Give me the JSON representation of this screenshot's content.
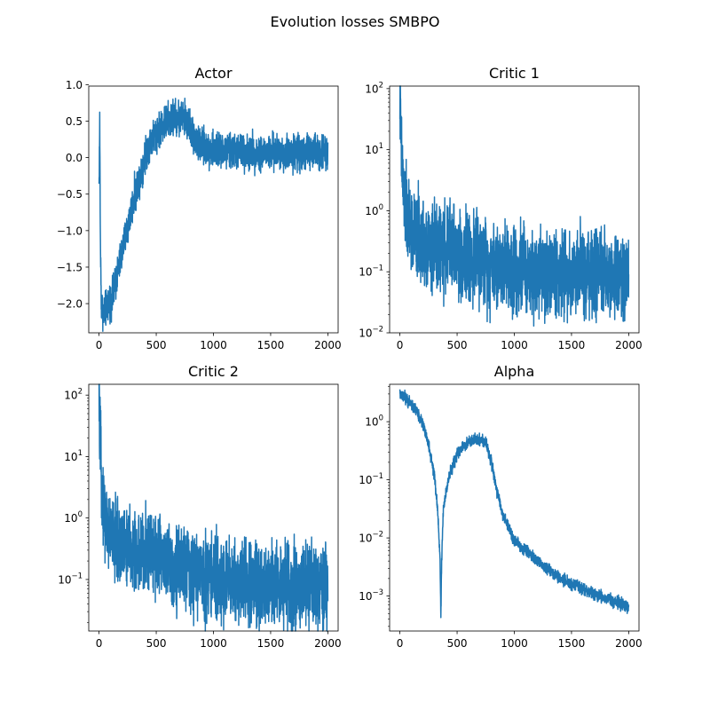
{
  "figure": {
    "title": "Evolution losses SMBPO"
  },
  "chart_data": [
    {
      "type": "line",
      "title": "Actor",
      "xlabel": "",
      "ylabel": "",
      "xscale": "linear",
      "yscale": "linear",
      "xlim": [
        -90,
        2090
      ],
      "ylim": [
        -2.4,
        0.98
      ],
      "xticks": [
        {
          "value": 0,
          "label": "0"
        },
        {
          "value": 500,
          "label": "500"
        },
        {
          "value": 1000,
          "label": "1000"
        },
        {
          "value": 1500,
          "label": "1500"
        },
        {
          "value": 2000,
          "label": "2000"
        }
      ],
      "yticks": [
        {
          "value": 1.0,
          "label": "1.0"
        },
        {
          "value": 0.5,
          "label": "0.5"
        },
        {
          "value": 0.0,
          "label": "0.0"
        },
        {
          "value": -0.5,
          "label": "−0.5"
        },
        {
          "value": -1.0,
          "label": "−1.0"
        },
        {
          "value": -1.5,
          "label": "−1.5"
        },
        {
          "value": -2.0,
          "label": "−2.0"
        }
      ],
      "grid": false,
      "series": [
        {
          "color": "#1f77b4",
          "noise": 0.12,
          "points": [
            [
              0,
              -0.4
            ],
            [
              6,
              0.48
            ],
            [
              12,
              -1.2
            ],
            [
              20,
              -2.0
            ],
            [
              40,
              -2.15
            ],
            [
              80,
              -2.0
            ],
            [
              120,
              -1.9
            ],
            [
              200,
              -1.3
            ],
            [
              300,
              -0.6
            ],
            [
              380,
              -0.1
            ],
            [
              440,
              0.2
            ],
            [
              500,
              0.35
            ],
            [
              560,
              0.45
            ],
            [
              620,
              0.52
            ],
            [
              680,
              0.55
            ],
            [
              740,
              0.55
            ],
            [
              790,
              0.45
            ],
            [
              830,
              0.28
            ],
            [
              880,
              0.15
            ],
            [
              950,
              0.12
            ],
            [
              1000,
              0.1
            ],
            [
              1200,
              0.08
            ],
            [
              1500,
              0.06
            ],
            [
              1800,
              0.08
            ],
            [
              2000,
              0.1
            ]
          ]
        }
      ]
    },
    {
      "type": "line",
      "title": "Critic 1",
      "xlabel": "",
      "ylabel": "",
      "xscale": "linear",
      "yscale": "log",
      "xlim": [
        -90,
        2090
      ],
      "ylim": [
        0.01,
        110
      ],
      "xticks": [
        {
          "value": 0,
          "label": "0"
        },
        {
          "value": 500,
          "label": "500"
        },
        {
          "value": 1000,
          "label": "1000"
        },
        {
          "value": 1500,
          "label": "1500"
        },
        {
          "value": 2000,
          "label": "2000"
        }
      ],
      "yticks": [
        {
          "value": 100,
          "label": "10",
          "exp": "2"
        },
        {
          "value": 10,
          "label": "10",
          "exp": "1"
        },
        {
          "value": 1,
          "label": "10",
          "exp": "0"
        },
        {
          "value": 0.1,
          "label": "10",
          "exp": "−1"
        },
        {
          "value": 0.01,
          "label": "10",
          "exp": "−2"
        }
      ],
      "grid": false,
      "series": [
        {
          "color": "#1f77b4",
          "noise": 0.35,
          "points": [
            [
              0,
              80
            ],
            [
              5,
              30
            ],
            [
              12,
              10
            ],
            [
              25,
              3
            ],
            [
              50,
              1
            ],
            [
              80,
              0.55
            ],
            [
              120,
              0.4
            ],
            [
              200,
              0.3
            ],
            [
              300,
              0.25
            ],
            [
              400,
              0.22
            ],
            [
              450,
              0.3
            ],
            [
              500,
              0.2
            ],
            [
              700,
              0.15
            ],
            [
              1000,
              0.12
            ],
            [
              1300,
              0.1
            ],
            [
              1600,
              0.09
            ],
            [
              2000,
              0.08
            ]
          ]
        }
      ]
    },
    {
      "type": "line",
      "title": "Critic 2",
      "xlabel": "",
      "ylabel": "",
      "xscale": "linear",
      "yscale": "log",
      "xlim": [
        -90,
        2090
      ],
      "ylim": [
        0.0145,
        150
      ],
      "xticks": [
        {
          "value": 0,
          "label": "0"
        },
        {
          "value": 500,
          "label": "500"
        },
        {
          "value": 1000,
          "label": "1000"
        },
        {
          "value": 1500,
          "label": "1500"
        },
        {
          "value": 2000,
          "label": "2000"
        }
      ],
      "yticks": [
        {
          "value": 100,
          "label": "10",
          "exp": "2"
        },
        {
          "value": 10,
          "label": "10",
          "exp": "1"
        },
        {
          "value": 1,
          "label": "10",
          "exp": "0"
        },
        {
          "value": 0.1,
          "label": "10",
          "exp": "−1"
        }
      ],
      "grid": false,
      "series": [
        {
          "color": "#1f77b4",
          "noise": 0.33,
          "points": [
            [
              0,
              100
            ],
            [
              5,
              40
            ],
            [
              12,
              10
            ],
            [
              25,
              3
            ],
            [
              50,
              1
            ],
            [
              80,
              0.6
            ],
            [
              150,
              0.45
            ],
            [
              250,
              0.3
            ],
            [
              350,
              0.25
            ],
            [
              480,
              0.3
            ],
            [
              600,
              0.18
            ],
            [
              800,
              0.14
            ],
            [
              1000,
              0.11
            ],
            [
              1300,
              0.09
            ],
            [
              1600,
              0.08
            ],
            [
              2000,
              0.07
            ]
          ]
        }
      ]
    },
    {
      "type": "line",
      "title": "Alpha",
      "xlabel": "",
      "ylabel": "",
      "xscale": "linear",
      "yscale": "log",
      "xlim": [
        -90,
        2090
      ],
      "ylim": [
        0.00025,
        4.4
      ],
      "xticks": [
        {
          "value": 0,
          "label": "0"
        },
        {
          "value": 500,
          "label": "500"
        },
        {
          "value": 1000,
          "label": "1000"
        },
        {
          "value": 1500,
          "label": "1500"
        },
        {
          "value": 2000,
          "label": "2000"
        }
      ],
      "yticks": [
        {
          "value": 1,
          "label": "10",
          "exp": "0"
        },
        {
          "value": 0.1,
          "label": "10",
          "exp": "−1"
        },
        {
          "value": 0.01,
          "label": "10",
          "exp": "−2"
        },
        {
          "value": 0.001,
          "label": "10",
          "exp": "−3"
        }
      ],
      "grid": false,
      "series": [
        {
          "color": "#1f77b4",
          "noise": 0.05,
          "points": [
            [
              0,
              2.9
            ],
            [
              50,
              2.5
            ],
            [
              100,
              2.0
            ],
            [
              150,
              1.5
            ],
            [
              200,
              0.9
            ],
            [
              250,
              0.4
            ],
            [
              300,
              0.12
            ],
            [
              330,
              0.03
            ],
            [
              350,
              0.005
            ],
            [
              358,
              0.00045
            ],
            [
              366,
              0.005
            ],
            [
              380,
              0.03
            ],
            [
              420,
              0.1
            ],
            [
              500,
              0.28
            ],
            [
              600,
              0.45
            ],
            [
              700,
              0.5
            ],
            [
              750,
              0.45
            ],
            [
              800,
              0.2
            ],
            [
              850,
              0.06
            ],
            [
              900,
              0.025
            ],
            [
              1000,
              0.009
            ],
            [
              1200,
              0.004
            ],
            [
              1400,
              0.002
            ],
            [
              1600,
              0.0013
            ],
            [
              1800,
              0.0009
            ],
            [
              2000,
              0.00065
            ]
          ]
        }
      ]
    }
  ]
}
